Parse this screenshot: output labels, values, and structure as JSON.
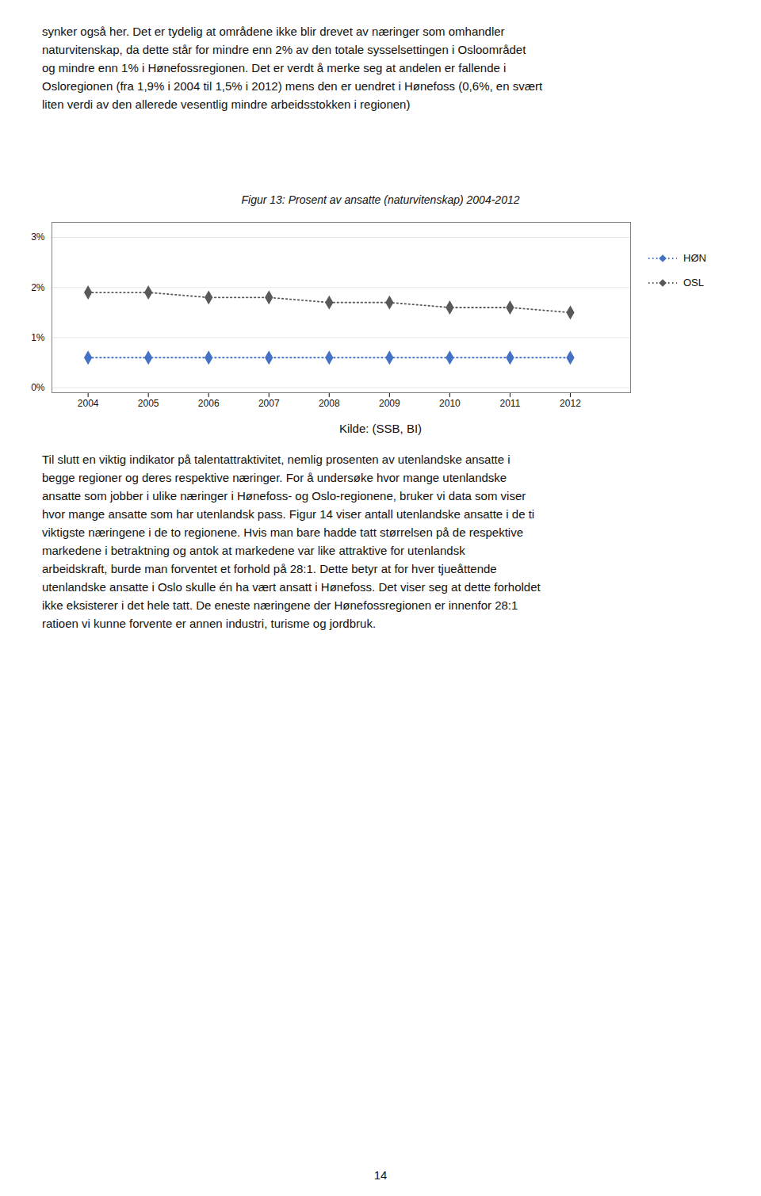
{
  "header_texts": [
    "synker også her. Det er tydelig at områdene ikke blir drevet av næringer som omhandler",
    "naturvitenskap, da dette står for mindre enn 2% av den totale sysselsettingen i Osloområdet",
    "og mindre enn 1% i Hønefossregionen. Det er verdt å merke seg at andelen er fallende i",
    "Osloregionen (fra 1,9% i 2004 til 1,5% i 2012) mens den er uendret i Hønefoss (0,6%, en svært",
    "liten verdi av den allerede vesentlig mindre arbeidsstokken i regionen)"
  ],
  "chart_data": {
    "type": "line",
    "title": "Figur 13: Prosent av ansatte (naturvitenskap) 2004-2012",
    "x": [
      2004,
      2005,
      2006,
      2007,
      2008,
      2009,
      2010,
      2011,
      2012
    ],
    "series": [
      {
        "name": "HØN",
        "color": "#4472c4",
        "marker": "diamond",
        "line_style": "dotted",
        "values": [
          0.006,
          0.006,
          0.006,
          0.006,
          0.006,
          0.006,
          0.006,
          0.006,
          0.006
        ]
      },
      {
        "name": "OSL",
        "color": "#595959",
        "marker": "diamond",
        "line_style": "dotted",
        "values": [
          0.019,
          0.019,
          0.018,
          0.018,
          0.017,
          0.017,
          0.016,
          0.016,
          0.015
        ]
      }
    ],
    "xlim": [
      2003.4,
      2013.0
    ],
    "xticks": [
      2004,
      2005,
      2006,
      2007,
      2008,
      2009,
      2010,
      2011,
      2012
    ],
    "ylim": [
      -0.001,
      0.033
    ],
    "yticks": [
      {
        "value": 0.0,
        "label": "0%"
      },
      {
        "value": 0.01,
        "label": "1%"
      },
      {
        "value": 0.02,
        "label": "2%"
      },
      {
        "value": 0.03,
        "label": "3%"
      }
    ],
    "grid": true,
    "legend": "right"
  },
  "source": "Kilde: (SSB, BI)",
  "body_texts": [
    "Til slutt en viktig indikator på talentattraktivitet, nemlig prosenten av utenlandske ansatte i",
    "begge regioner og deres respektive næringer. For å undersøke hvor mange utenlandske",
    "ansatte som jobber i ulike næringer i Hønefoss- og Oslo-regionene, bruker vi data som viser",
    "hvor mange ansatte som har utenlandsk pass. Figur 14 viser antall utenlandske ansatte i de ti",
    "viktigste næringene i de to regionene. Hvis man bare hadde tatt størrelsen på de respektive",
    "markedene i betraktning og antok at markedene var like attraktive for utenlandsk",
    "arbeidskraft, burde man forventet et forhold på 28:1. Dette betyr at for hver tjueåttende",
    "utenlandske ansatte i Oslo skulle én ha vært ansatt i Hønefoss. Det viser seg at dette forholdet",
    "ikke eksisterer i det hele tatt. De eneste næringene der Hønefossregionen er innenfor 28:1",
    "ratioen vi kunne forvente er annen industri, turisme og jordbruk."
  ],
  "page_number": "14"
}
